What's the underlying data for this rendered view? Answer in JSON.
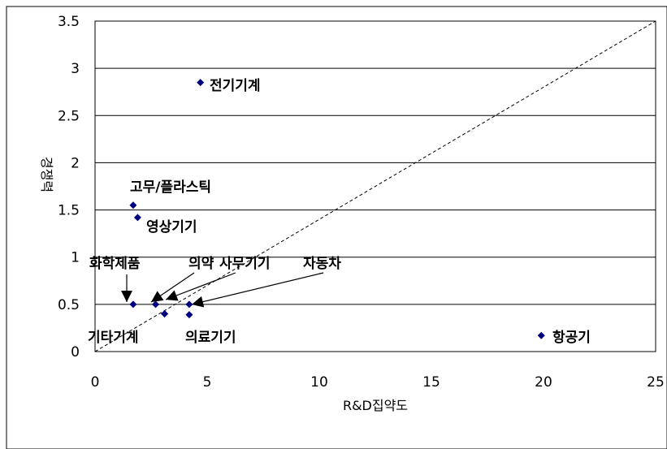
{
  "chart_data": {
    "type": "scatter",
    "title": "",
    "xlabel": "R&D집약도",
    "ylabel": "경쟁력",
    "xlim": [
      0,
      25
    ],
    "ylim": [
      0,
      3.5
    ],
    "x_ticks": [
      "0",
      "5",
      "10",
      "15",
      "20",
      "25"
    ],
    "y_ticks": [
      "0",
      "0.5",
      "1",
      "1.5",
      "2",
      "2.5",
      "3",
      "3.5"
    ],
    "grid": "horizontal",
    "legend": "none",
    "marker_color": "#000080",
    "points": [
      {
        "label": "영상기기",
        "x": 4.7,
        "y": 2.85
      },
      {
        "label": "전기기계",
        "x": 1.7,
        "y": 1.55
      },
      {
        "label": "고무/플라스틱",
        "x": 1.9,
        "y": 1.42
      },
      {
        "label": "화학제품",
        "x": 1.7,
        "y": 0.5
      },
      {
        "label": "의약",
        "x": 2.7,
        "y": 0.5
      },
      {
        "label": "사무기기",
        "x": 3.1,
        "y": 0.4
      },
      {
        "label": "자동차",
        "x": 4.2,
        "y": 0.5
      },
      {
        "label": "기타기계",
        "x": 3.1,
        "y": 0.4
      },
      {
        "label": "의료기기",
        "x": 4.2,
        "y": 0.39
      },
      {
        "label": "항공기",
        "x": 19.9,
        "y": 0.17
      }
    ],
    "reference_line": {
      "from": [
        0,
        0
      ],
      "to": [
        25,
        3.5
      ],
      "style": "dashed"
    },
    "annotations": [
      {
        "text": "전기기계"
      },
      {
        "text": "고무/플라스틱"
      },
      {
        "text": "영상기기"
      },
      {
        "text": "화학제품"
      },
      {
        "text": "의약"
      },
      {
        "text": "사무기기"
      },
      {
        "text": "자동차"
      },
      {
        "text": "기타기계"
      },
      {
        "text": "의료기기"
      },
      {
        "text": "항공기"
      }
    ]
  }
}
